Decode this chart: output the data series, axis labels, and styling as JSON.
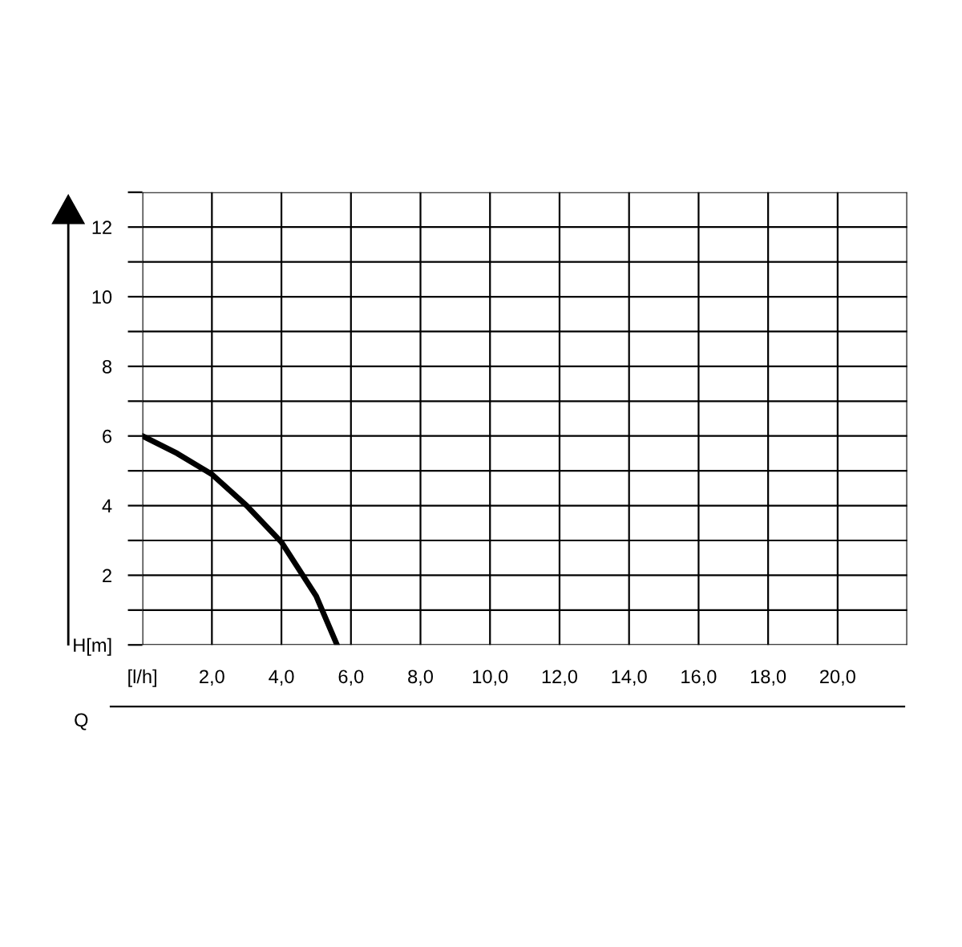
{
  "chart_data": {
    "type": "line",
    "xlabel": "Q",
    "x": [
      0,
      1,
      2,
      3,
      4,
      5,
      5.6
    ],
    "series": [
      {
        "color": "#000000",
        "values": [
          6.0,
          5.5,
          4.9,
          4.0,
          2.95,
          1.4,
          0
        ]
      }
    ],
    "xlim": [
      0,
      22
    ],
    "ylim": [
      0,
      13
    ],
    "xticks": [
      {
        "value": 0,
        "label": "[l/h]"
      },
      {
        "value": 2,
        "label": "2,0"
      },
      {
        "value": 4,
        "label": "4,0"
      },
      {
        "value": 6,
        "label": "6,0"
      },
      {
        "value": 8,
        "label": "8,0"
      },
      {
        "value": 10,
        "label": "10,0"
      },
      {
        "value": 12,
        "label": "12,0"
      },
      {
        "value": 14,
        "label": "14,0"
      },
      {
        "value": 16,
        "label": "16,0"
      },
      {
        "value": 18,
        "label": "18,0"
      },
      {
        "value": 20,
        "label": "20,0"
      },
      {
        "value": 22,
        "label": null
      }
    ],
    "yticks": [
      {
        "value": 0,
        "label": "H[m]"
      },
      {
        "value": 1,
        "label": null
      },
      2,
      {
        "value": 3,
        "label": null
      },
      4,
      {
        "value": 5,
        "label": null
      },
      6,
      {
        "value": 7,
        "label": null
      },
      8,
      {
        "value": 9,
        "label": null
      },
      10,
      {
        "value": 11,
        "label": null
      },
      12,
      {
        "value": 13,
        "label": null
      }
    ],
    "grid": true,
    "legend": false,
    "marker": "none",
    "line_style": "solid"
  }
}
